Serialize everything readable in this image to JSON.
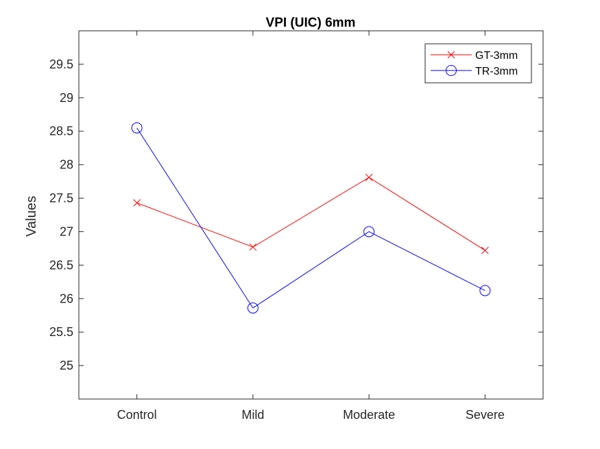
{
  "chart_data": {
    "type": "line",
    "title": "VPI (UIC) 6mm",
    "xlabel": "",
    "ylabel": "Values",
    "categories": [
      "Control",
      "Mild",
      "Moderate",
      "Severe"
    ],
    "ylim": [
      24.5,
      30
    ],
    "yticks": [
      25,
      25.5,
      26,
      26.5,
      27,
      27.5,
      28,
      28.5,
      29,
      29.5
    ],
    "ytick_labels": [
      "25",
      "25.5",
      "26",
      "26.5",
      "27",
      "27.5",
      "28",
      "28.5",
      "29",
      "29.5"
    ],
    "grid": false,
    "legend_position": "top-right",
    "series": [
      {
        "name": "GT-3mm",
        "color": "#ff0000",
        "marker": "x",
        "values": [
          27.43,
          26.77,
          27.81,
          26.72
        ]
      },
      {
        "name": "TR-3mm",
        "color": "#0000ff",
        "marker": "o",
        "values": [
          28.55,
          25.86,
          27.0,
          26.12
        ]
      }
    ]
  }
}
